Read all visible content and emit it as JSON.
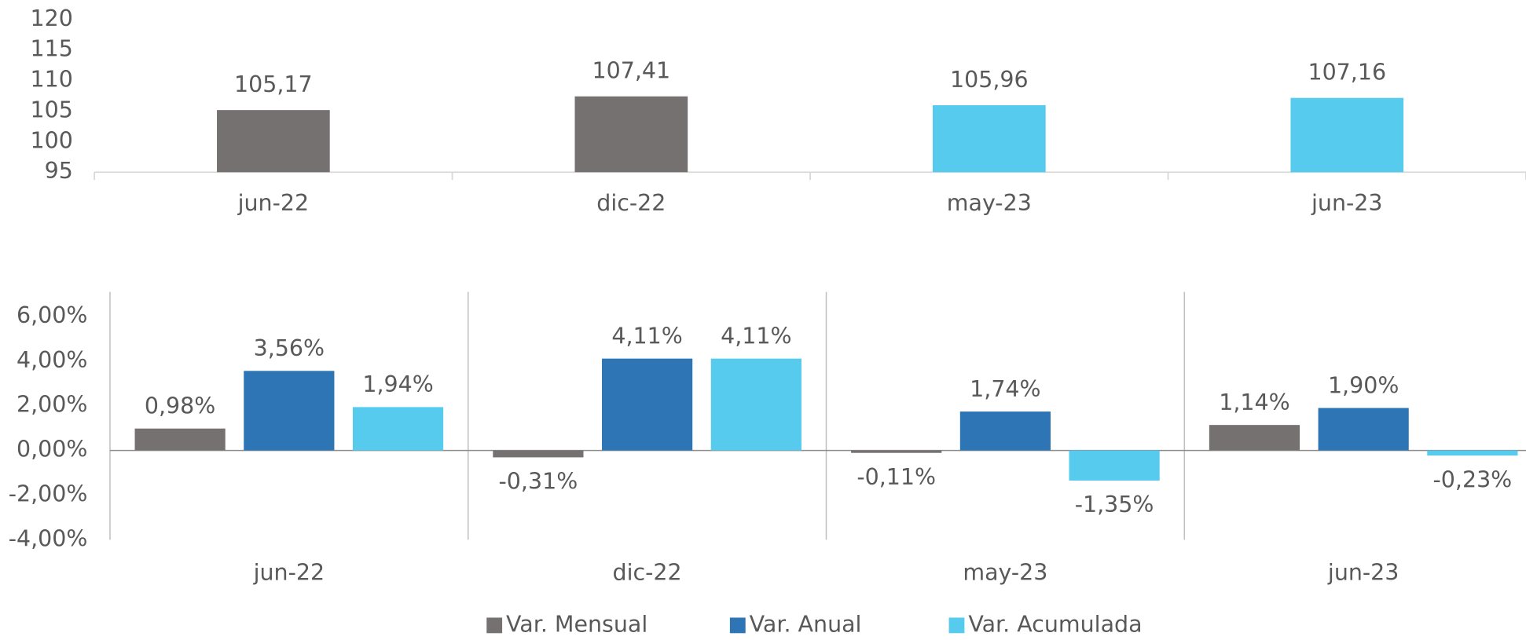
{
  "chart_data": [
    {
      "type": "bar",
      "categories": [
        "jun-22",
        "dic-22",
        "may-23",
        "jun-23"
      ],
      "values": [
        105.17,
        107.41,
        105.96,
        107.16
      ],
      "value_labels": [
        "105,17",
        "107,41",
        "105,96",
        "107,16"
      ],
      "colors": [
        "#767171",
        "#767171",
        "#56cbee",
        "#56cbee"
      ],
      "ylim": [
        95,
        120
      ],
      "yticks": [
        95,
        100,
        105,
        110,
        115,
        120
      ]
    },
    {
      "type": "grouped_bar",
      "categories": [
        "jun-22",
        "dic-22",
        "may-23",
        "jun-23"
      ],
      "series": [
        {
          "name": "Var. Mensual",
          "color": "#767171",
          "values": [
            0.98,
            -0.31,
            -0.11,
            1.14
          ],
          "value_labels": [
            "0,98%",
            "-0,31%",
            "-0,11%",
            "1,14%"
          ]
        },
        {
          "name": "Var. Anual",
          "color": "#2e75b6",
          "values": [
            3.56,
            4.11,
            1.74,
            1.9
          ],
          "value_labels": [
            "3,56%",
            "4,11%",
            "1,74%",
            "1,90%"
          ]
        },
        {
          "name": "Var. Acumulada",
          "color": "#56cbee",
          "values": [
            1.94,
            4.11,
            -1.35,
            -0.23
          ],
          "value_labels": [
            "1,94%",
            "4,11%",
            "-1,35%",
            "-0,23%"
          ]
        }
      ],
      "ylim": [
        -4,
        7.1
      ],
      "yticks": [
        {
          "value": -4,
          "label": "-4,00%"
        },
        {
          "value": -2,
          "label": "-2,00%"
        },
        {
          "value": 0,
          "label": "0,00%"
        },
        {
          "value": 2,
          "label": "2,00%"
        },
        {
          "value": 4,
          "label": "4,00%"
        },
        {
          "value": 6,
          "label": "6,00%"
        }
      ],
      "legend": "bottom"
    }
  ]
}
